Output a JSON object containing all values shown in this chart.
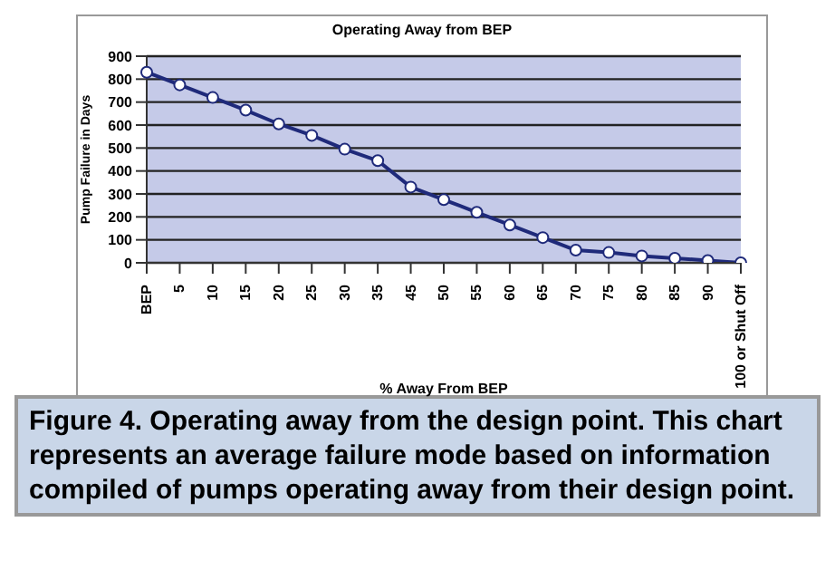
{
  "chart_data": {
    "type": "line",
    "title": "Operating Away from BEP",
    "xlabel": "% Away From BEP",
    "ylabel": "Pump Failure in Days",
    "categories": [
      "BEP",
      "5",
      "10",
      "15",
      "20",
      "25",
      "30",
      "35",
      "45",
      "50",
      "55",
      "60",
      "65",
      "70",
      "75",
      "80",
      "85",
      "90",
      "100 or Shut Off"
    ],
    "series": [
      {
        "color": "#1f2a7a",
        "values": [
          830,
          775,
          720,
          665,
          605,
          555,
          495,
          445,
          330,
          275,
          220,
          165,
          110,
          55,
          45,
          30,
          20,
          10,
          0
        ]
      }
    ],
    "ylim": [
      0,
      900
    ],
    "yticks": [
      0,
      100,
      200,
      300,
      400,
      500,
      600,
      700,
      800,
      900
    ],
    "grid": "y",
    "marker": "circle",
    "annotations": [
      "Figure 4. Operating away from the design point. This chart represents an average failure mode based on information compiled of pumps operating away from their design point."
    ]
  }
}
